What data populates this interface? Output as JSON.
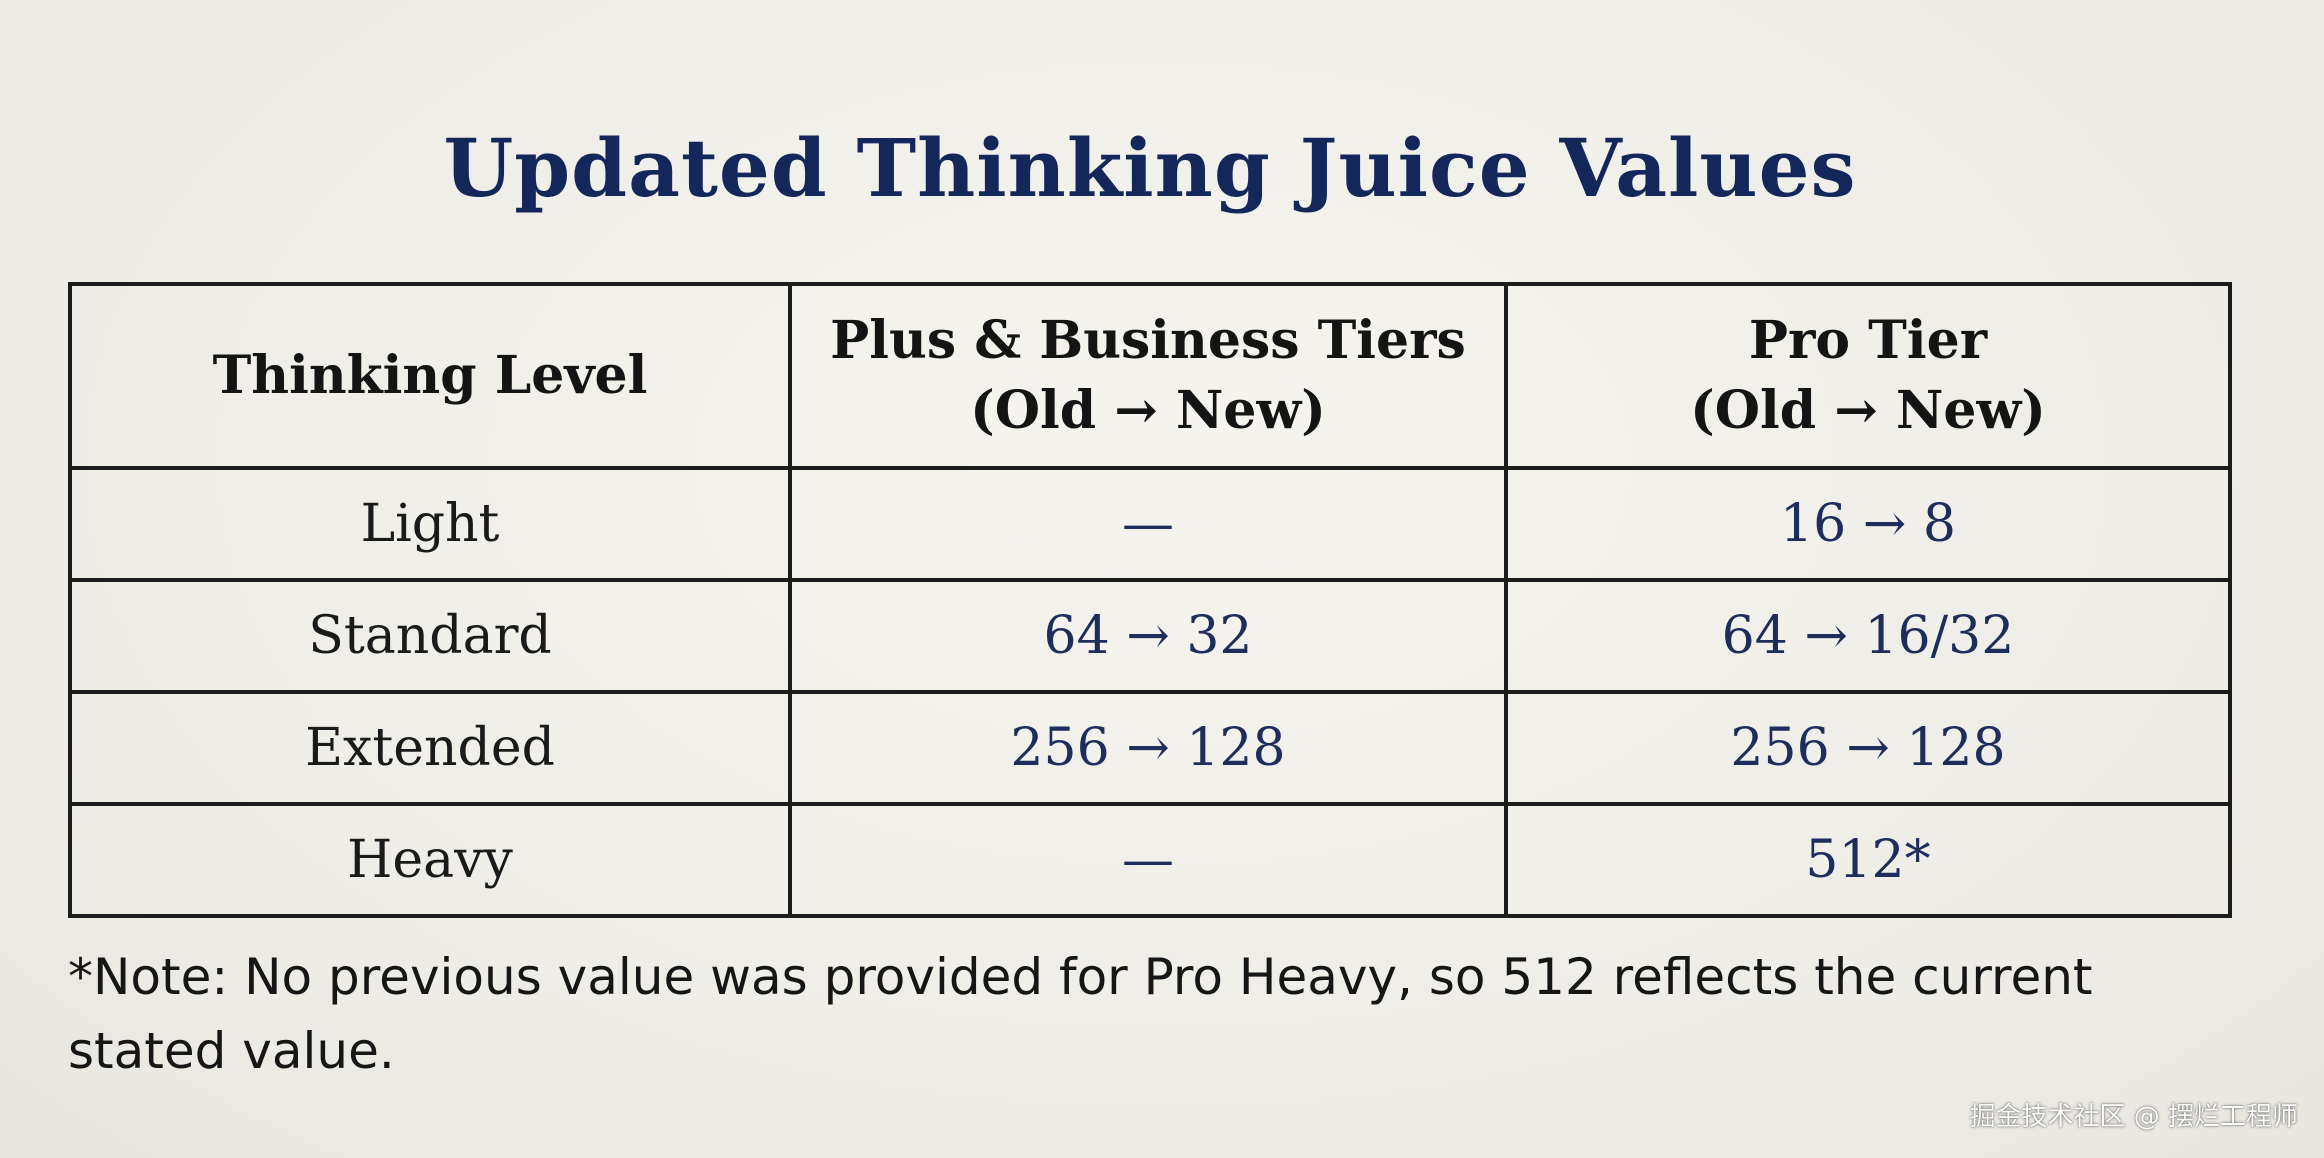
{
  "title": "Updated Thinking Juice Values",
  "table": {
    "headers": [
      {
        "line1": "Thinking Level",
        "line2": ""
      },
      {
        "line1": "Plus & Business Tiers",
        "line2": "(Old → New)"
      },
      {
        "line1": "Pro Tier",
        "line2": "(Old → New)"
      }
    ],
    "rows": [
      {
        "level": "Light",
        "plus_business": "—",
        "pro": "16 → 8"
      },
      {
        "level": "Standard",
        "plus_business": "64 → 32",
        "pro": "64 → 16/32"
      },
      {
        "level": "Extended",
        "plus_business": "256 → 128",
        "pro": "256 → 128"
      },
      {
        "level": "Heavy",
        "plus_business": "—",
        "pro": "512*"
      }
    ]
  },
  "note": "*Note: No previous value was provided for Pro Heavy, so 512 reflects the current stated value.",
  "watermark": "掘金技术社区 @ 摆烂工程师",
  "colors": {
    "title": "#13275a",
    "values": "#1e2d5c",
    "border": "#1c1c1c",
    "background": "#f1efe9"
  }
}
